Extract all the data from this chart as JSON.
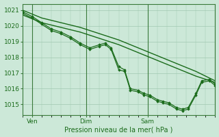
{
  "title": "Pression niveau de la mer( hPa )",
  "ylabel_ticks": [
    1015,
    1016,
    1017,
    1018,
    1019,
    1020,
    1021
  ],
  "ylim": [
    1014.3,
    1021.4
  ],
  "xlim": [
    0,
    100
  ],
  "xtick_positions": [
    5,
    33,
    65
  ],
  "xtick_labels": [
    "Ven",
    "Dim",
    "Sam"
  ],
  "bg_color": "#cce8d8",
  "grid_color": "#a0c8b0",
  "line_color": "#1a6b1a",
  "marker_color": "#1a6b1a",
  "vline_color": "#3a7a3a",
  "lines": [
    {
      "x": [
        0,
        10,
        20,
        30,
        40,
        50,
        60,
        70,
        80,
        90,
        100
      ],
      "y": [
        1021.0,
        1020.5,
        1020.2,
        1019.9,
        1019.5,
        1019.1,
        1018.6,
        1018.1,
        1017.6,
        1017.1,
        1016.5
      ],
      "marker": null,
      "lw": 1.0
    },
    {
      "x": [
        0,
        10,
        20,
        30,
        40,
        50,
        60,
        70,
        80,
        90,
        100
      ],
      "y": [
        1020.7,
        1020.2,
        1019.9,
        1019.6,
        1019.2,
        1018.8,
        1018.3,
        1017.8,
        1017.3,
        1016.8,
        1016.4
      ],
      "marker": null,
      "lw": 1.0
    },
    {
      "x": [
        0,
        5,
        10,
        15,
        20,
        25,
        30,
        35,
        40,
        43,
        46,
        50,
        53,
        56,
        60,
        63,
        66,
        70,
        73,
        76,
        80,
        83,
        86,
        90,
        93,
        97,
        100
      ],
      "y": [
        1020.8,
        1020.5,
        1020.1,
        1019.7,
        1019.5,
        1019.2,
        1018.8,
        1018.5,
        1018.7,
        1018.8,
        1018.5,
        1017.2,
        1017.1,
        1015.9,
        1015.8,
        1015.6,
        1015.5,
        1015.2,
        1015.1,
        1015.0,
        1014.7,
        1014.6,
        1014.7,
        1015.6,
        1016.4,
        1016.5,
        1016.2
      ],
      "marker": "D",
      "lw": 0.9
    },
    {
      "x": [
        0,
        5,
        10,
        15,
        20,
        25,
        30,
        35,
        40,
        43,
        46,
        50,
        53,
        56,
        60,
        63,
        66,
        70,
        73,
        76,
        80,
        83,
        86,
        90,
        93,
        97,
        100
      ],
      "y": [
        1020.9,
        1020.6,
        1020.2,
        1019.8,
        1019.6,
        1019.3,
        1018.9,
        1018.6,
        1018.8,
        1018.9,
        1018.6,
        1017.4,
        1017.2,
        1016.0,
        1015.9,
        1015.7,
        1015.6,
        1015.3,
        1015.2,
        1015.1,
        1014.8,
        1014.7,
        1014.8,
        1015.7,
        1016.5,
        1016.6,
        1016.3
      ],
      "marker": "D",
      "lw": 0.9
    }
  ],
  "vline_positions": [
    5,
    33,
    65
  ]
}
